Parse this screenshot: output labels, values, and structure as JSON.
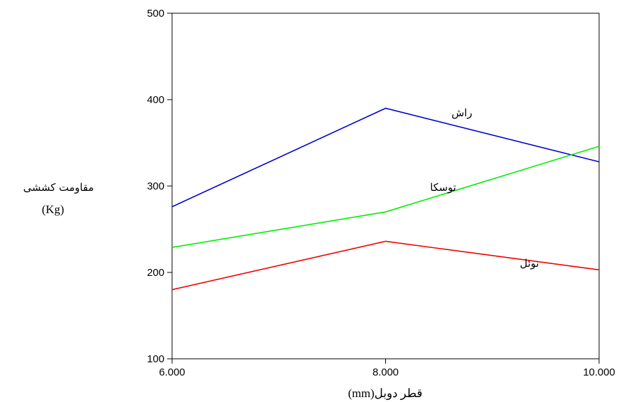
{
  "chart_data": {
    "type": "line",
    "x": [
      6.0,
      8.0,
      10.0
    ],
    "x_tick_labels": [
      "6.000",
      "8.000",
      "10.000"
    ],
    "y_ticks": [
      100,
      200,
      300,
      400,
      500
    ],
    "y_tick_labels": [
      "100",
      "200",
      "300",
      "400",
      "500"
    ],
    "xlim": [
      6.0,
      10.0
    ],
    "ylim": [
      100,
      500
    ],
    "xlabel": "قطر دوبل(mm)",
    "ylabel_line1": "مقاومت کششی",
    "ylabel_line2": "(Kg)",
    "grid": false,
    "series": [
      {
        "name": "راش",
        "values": [
          276,
          390,
          328
        ],
        "color": "#0000cc"
      },
      {
        "name": "توسکا",
        "values": [
          229,
          270,
          346
        ],
        "color": "#00ee00"
      },
      {
        "name": "نوئل",
        "values": [
          180,
          236,
          203
        ],
        "color": "#ee0000"
      }
    ]
  }
}
